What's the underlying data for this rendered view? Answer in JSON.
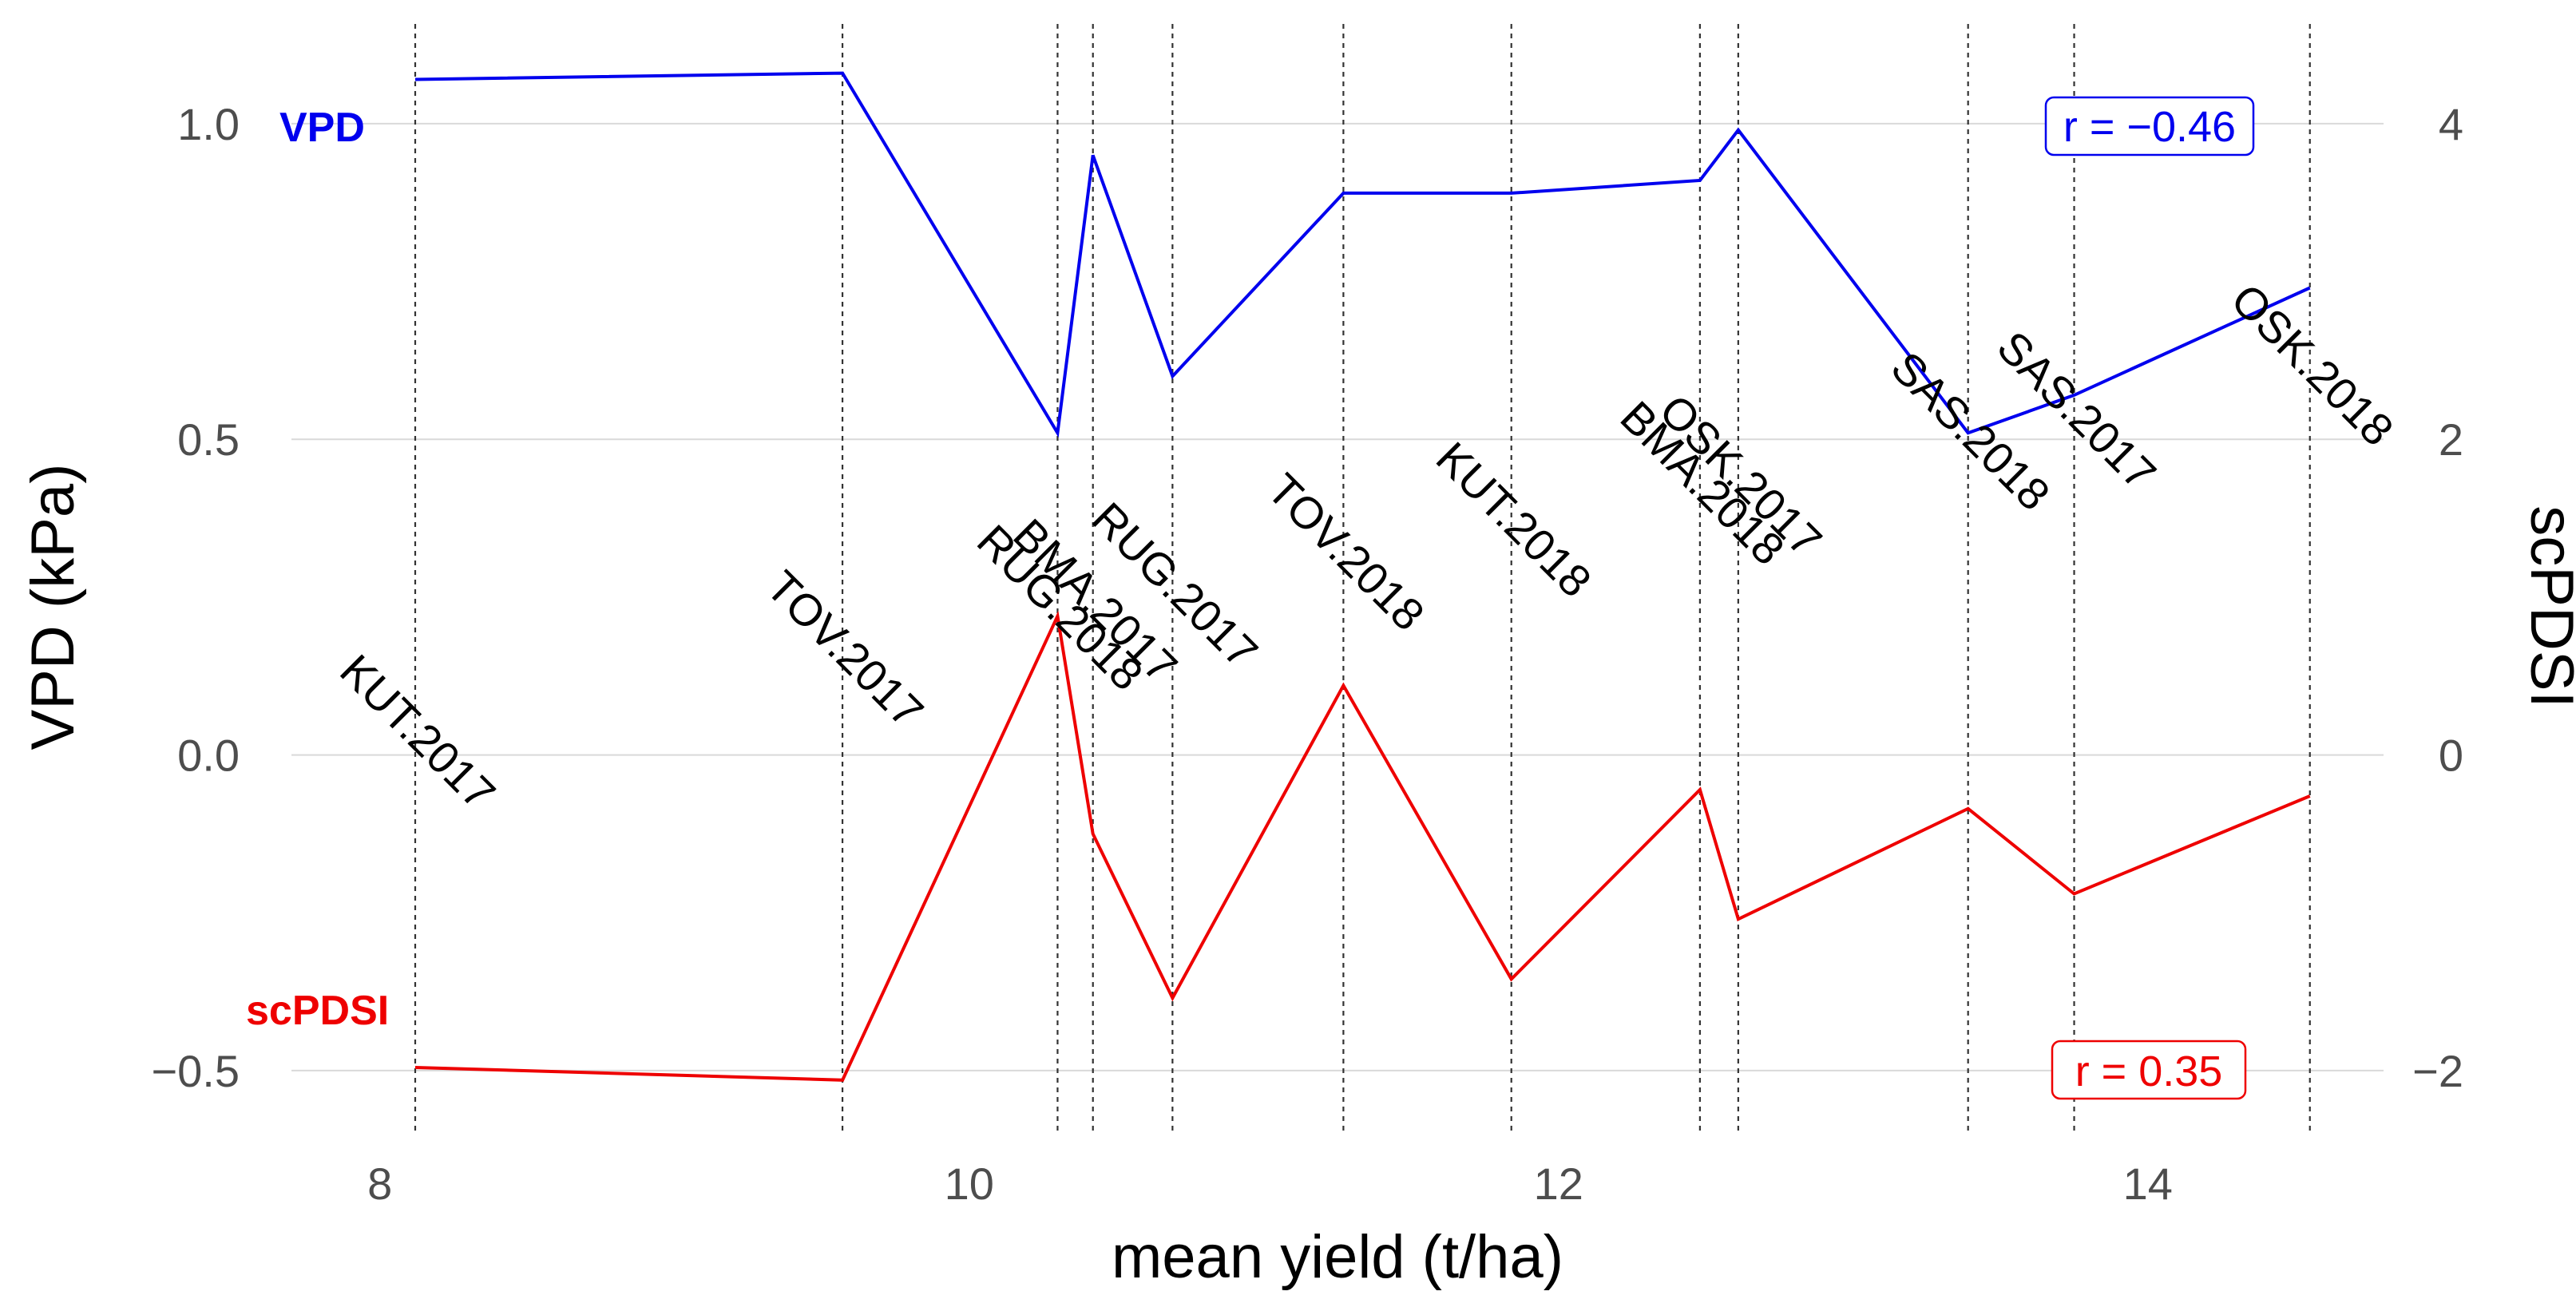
{
  "chart_data": {
    "type": "line",
    "xlabel": "mean yield (t/ha)",
    "ylabel_left": "VPD (kPa)",
    "ylabel_right": "scPDSI",
    "xlim": [
      7.7,
      14.8
    ],
    "ylim_left": [
      -0.6,
      1.12
    ],
    "ylim_right": [
      -2.4,
      4.48
    ],
    "x_ticks": [
      {
        "value": 8,
        "label": "8"
      },
      {
        "value": 10,
        "label": "10"
      },
      {
        "value": 12,
        "label": "12"
      },
      {
        "value": 14,
        "label": "14"
      }
    ],
    "y_ticks_left": [
      {
        "value": -0.5,
        "label": "−0.5"
      },
      {
        "value": 0.0,
        "label": "0.0"
      },
      {
        "value": 0.5,
        "label": "0.5"
      },
      {
        "value": 1.0,
        "label": "1.0"
      }
    ],
    "y_ticks_right": [
      {
        "value": -2,
        "label": "−2"
      },
      {
        "value": 0,
        "label": "0"
      },
      {
        "value": 2,
        "label": "2"
      },
      {
        "value": 4,
        "label": "4"
      }
    ],
    "grid": true,
    "sites": [
      {
        "label": "KUT.2017",
        "x": 8.12
      },
      {
        "label": "TOV.2017",
        "x": 9.57
      },
      {
        "label": "RUG.2018",
        "x": 10.3
      },
      {
        "label": "BMA.2017",
        "x": 10.42
      },
      {
        "label": "RUG.2017",
        "x": 10.69
      },
      {
        "label": "TOV.2018",
        "x": 11.27
      },
      {
        "label": "KUT.2018",
        "x": 11.84
      },
      {
        "label": "BMA.2018",
        "x": 12.48
      },
      {
        "label": "OSK.2017",
        "x": 12.61
      },
      {
        "label": "SAS.2018",
        "x": 13.39
      },
      {
        "label": "SAS.2017",
        "x": 13.75
      },
      {
        "label": "OSK.2018",
        "x": 14.55
      }
    ],
    "series": [
      {
        "name": "VPD",
        "axis": "left",
        "color": "#0000ee",
        "r_label": "r = −0.46",
        "x": [
          8.12,
          9.57,
          10.3,
          10.42,
          10.69,
          11.27,
          11.84,
          12.48,
          12.61,
          13.39,
          13.75,
          14.55
        ],
        "values": [
          1.07,
          1.08,
          0.51,
          0.95,
          0.6,
          0.89,
          0.89,
          0.91,
          0.99,
          0.51,
          0.57,
          0.74
        ]
      },
      {
        "name": "scPDSI",
        "axis": "right",
        "color": "#ee0000",
        "r_label": "r = 0.35",
        "x": [
          8.12,
          9.57,
          10.3,
          10.42,
          10.69,
          11.27,
          11.84,
          12.48,
          12.61,
          13.39,
          13.75,
          14.55
        ],
        "values": [
          -1.98,
          -2.06,
          0.88,
          -0.5,
          -1.54,
          0.44,
          -1.42,
          -0.22,
          -1.04,
          -0.34,
          -0.88,
          -0.26
        ]
      }
    ]
  }
}
